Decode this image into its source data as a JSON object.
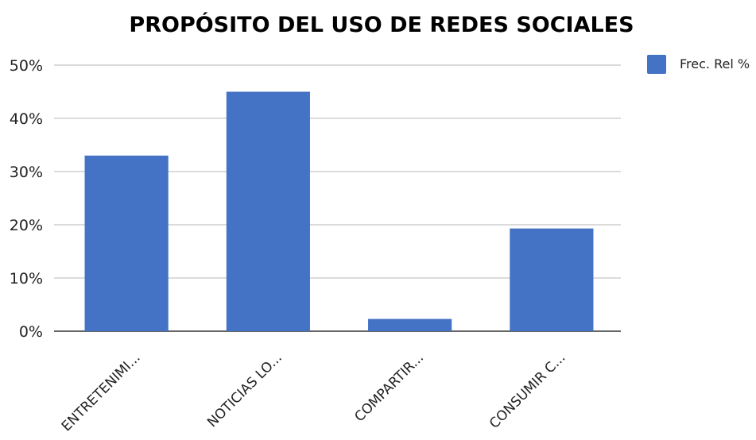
{
  "chart_data": {
    "type": "bar",
    "title": "PROPÓSITO DEL USO DE REDES SOCIALES",
    "xlabel": "",
    "ylabel": "",
    "categories": [
      "ENTRETENIMI...",
      "NOTICIAS LO...",
      "COMPARTIR...",
      "CONSUMIR C..."
    ],
    "series": [
      {
        "name": "Frec. Rel %",
        "values": [
          33,
          45,
          2.3,
          19.3
        ],
        "color": "#4472c4"
      }
    ],
    "ylim": [
      0,
      50
    ],
    "yticks": [
      0,
      10,
      20,
      30,
      40,
      50
    ],
    "ytick_labels": [
      "0%",
      "10%",
      "20%",
      "30%",
      "40%",
      "50%"
    ],
    "grid": true,
    "legend_position": "top-right"
  }
}
